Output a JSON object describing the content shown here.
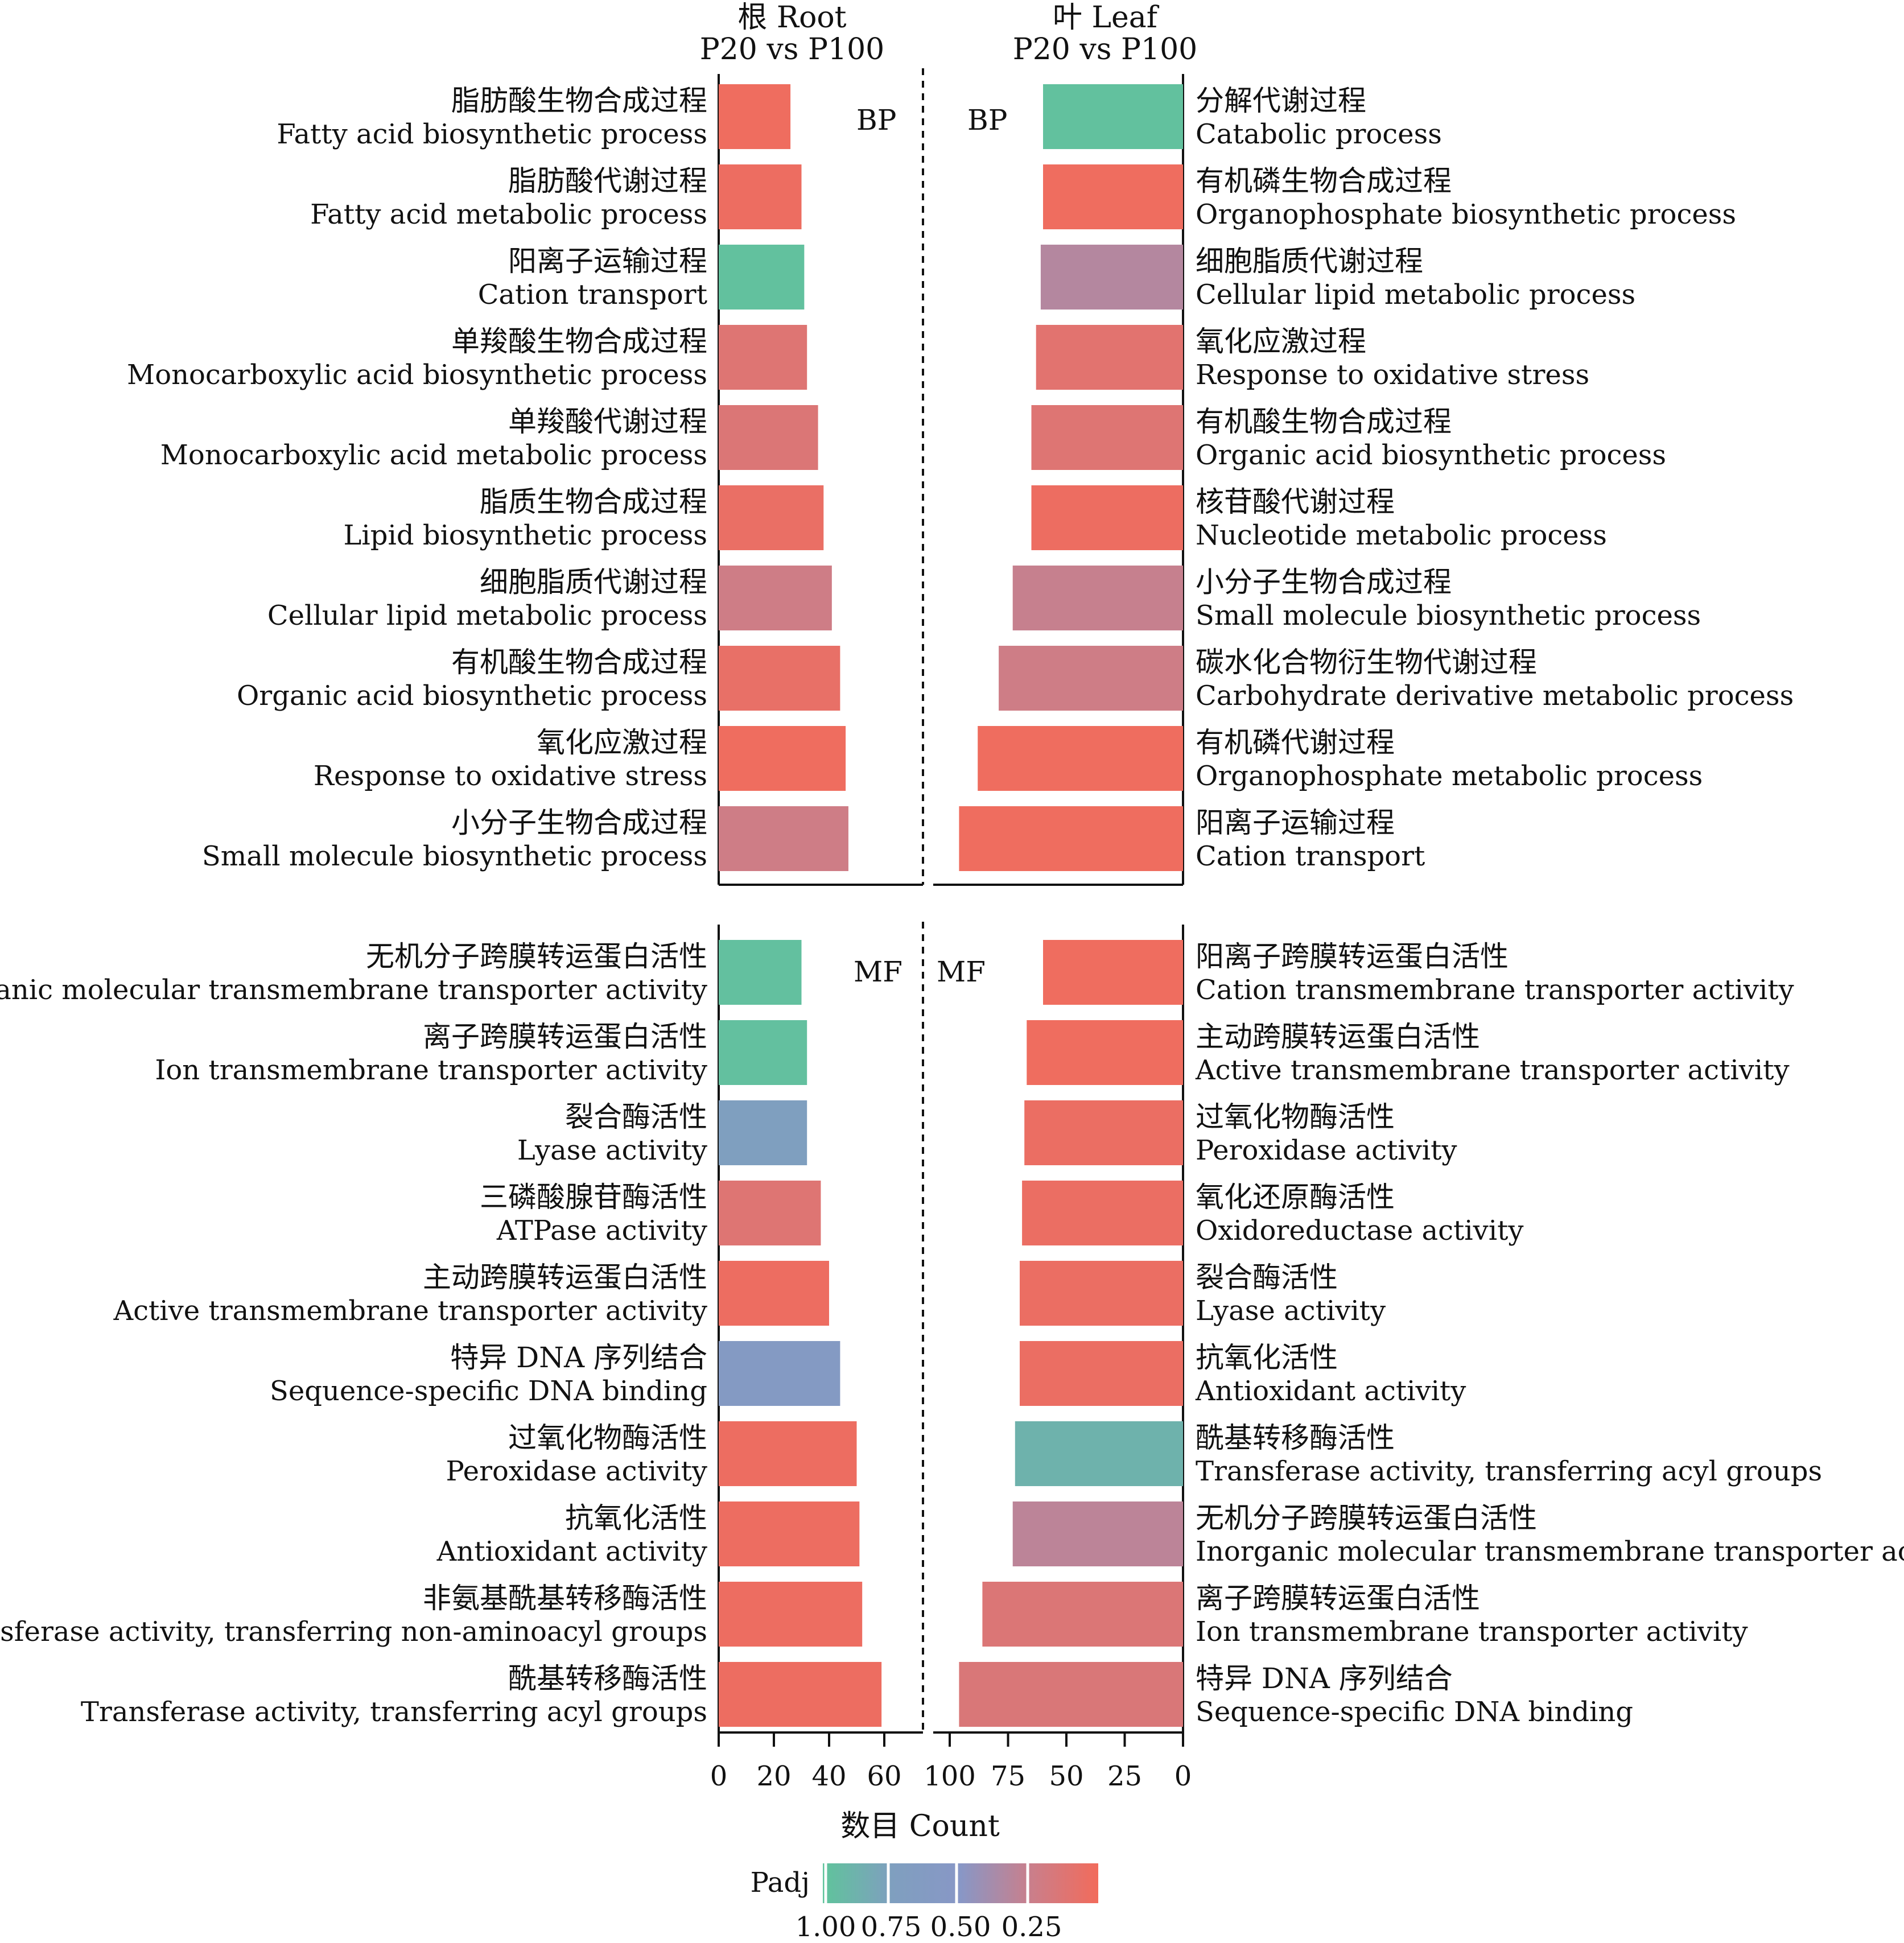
{
  "chart_data": {
    "type": "bar",
    "headers": {
      "root": [
        "根 Root",
        "P20 vs P100"
      ],
      "leaf": [
        "叶 Leaf",
        "P20 vs P100"
      ]
    },
    "xlabel": "数目 Count",
    "root_ticks": [
      "0",
      "20",
      "40",
      "60"
    ],
    "leaf_ticks": [
      "100",
      "75",
      "50",
      "25",
      "0"
    ],
    "root_xlim": [
      0,
      65
    ],
    "leaf_xlim": [
      0,
      102
    ],
    "legend": {
      "title": "Padj",
      "labels": [
        "1.00",
        "0.75",
        "0.50",
        "0.25"
      ]
    },
    "colors": {
      "padj_1_00": "#5fc49b",
      "padj_0_75": "#7f9fbf",
      "padj_0_50": "#8897c6",
      "padj_0_25": "#c97f8c",
      "padj_0_00": "#f26b5b"
    },
    "panels": [
      {
        "tag": "BP",
        "root": [
          {
            "cn": "脂肪酸生物合成过程",
            "en": "Fatty acid biosynthetic process",
            "count": 26,
            "padj": 0.02
          },
          {
            "cn": "脂肪酸代谢过程",
            "en": "Fatty acid metabolic process",
            "count": 30,
            "padj": 0.03
          },
          {
            "cn": "阳离子运输过程",
            "en": "Cation transport",
            "count": 31,
            "padj": 0.98
          },
          {
            "cn": "单羧酸生物合成过程",
            "en": "Monocarboxylic acid biosynthetic process",
            "count": 32,
            "padj": 0.12
          },
          {
            "cn": "单羧酸代谢过程",
            "en": "Monocarboxylic acid metabolic process",
            "count": 36,
            "padj": 0.14
          },
          {
            "cn": "脂质生物合成过程",
            "en": "Lipid biosynthetic process",
            "count": 38,
            "padj": 0.05
          },
          {
            "cn": "细胞脂质代谢过程",
            "en": "Cellular lipid metabolic process",
            "count": 41,
            "padj": 0.22
          },
          {
            "cn": "有机酸生物合成过程",
            "en": "Organic acid biosynthetic process",
            "count": 44,
            "padj": 0.06
          },
          {
            "cn": "氧化应激过程",
            "en": "Response to oxidative stress",
            "count": 46,
            "padj": 0.02
          },
          {
            "cn": "小分子生物合成过程",
            "en": "Small molecule biosynthetic process",
            "count": 47,
            "padj": 0.22
          }
        ],
        "leaf": [
          {
            "cn": "分解代谢过程",
            "en": "Catabolic process",
            "count": 60,
            "padj": 0.98
          },
          {
            "cn": "有机磷生物合成过程",
            "en": "Organophosphate biosynthetic process",
            "count": 60,
            "padj": 0.02
          },
          {
            "cn": "细胞脂质代谢过程",
            "en": "Cellular lipid metabolic process",
            "count": 61,
            "padj": 0.33
          },
          {
            "cn": "氧化应激过程",
            "en": "Response to oxidative stress",
            "count": 63,
            "padj": 0.1
          },
          {
            "cn": "有机酸生物合成过程",
            "en": "Organic acid biosynthetic process",
            "count": 65,
            "padj": 0.12
          },
          {
            "cn": "核苷酸代谢过程",
            "en": "Nucleotide metabolic process",
            "count": 65,
            "padj": 0.03
          },
          {
            "cn": "小分子生物合成过程",
            "en": "Small molecule biosynthetic process",
            "count": 73,
            "padj": 0.26
          },
          {
            "cn": "碳水化合物衍生物代谢过程",
            "en": "Carbohydrate derivative metabolic process",
            "count": 79,
            "padj": 0.22
          },
          {
            "cn": "有机磷代谢过程",
            "en": "Organophosphate metabolic process",
            "count": 88,
            "padj": 0.02
          },
          {
            "cn": "阳离子运输过程",
            "en": "Cation transport",
            "count": 96,
            "padj": 0.02
          }
        ]
      },
      {
        "tag": "MF",
        "root": [
          {
            "cn": "无机分子跨膜转运蛋白活性",
            "en": "Inorganic molecular transmembrane transporter activity",
            "count": 30,
            "padj": 0.97
          },
          {
            "cn": "离子跨膜转运蛋白活性",
            "en": "Ion transmembrane transporter activity",
            "count": 32,
            "padj": 0.97
          },
          {
            "cn": "裂合酶活性",
            "en": "Lyase activity",
            "count": 32,
            "padj": 0.74
          },
          {
            "cn": "三磷酸腺苷酶活性",
            "en": "ATPase activity",
            "count": 37,
            "padj": 0.12
          },
          {
            "cn": "主动跨膜转运蛋白活性",
            "en": "Active transmembrane transporter activity",
            "count": 40,
            "padj": 0.03
          },
          {
            "cn": "特异 DNA 序列结合",
            "en": "Sequence-specific DNA binding",
            "count": 44,
            "padj": 0.6
          },
          {
            "cn": "过氧化物酶活性",
            "en": "Peroxidase activity",
            "count": 50,
            "padj": 0.03
          },
          {
            "cn": "抗氧化活性",
            "en": "Antioxidant activity",
            "count": 51,
            "padj": 0.03
          },
          {
            "cn": "非氨基酰基转移酶活性",
            "en": "Transferase activity, transferring non-aminoacyl groups",
            "count": 52,
            "padj": 0.03
          },
          {
            "cn": "酰基转移酶活性",
            "en": "Transferase activity, transferring acyl groups",
            "count": 59,
            "padj": 0.03
          }
        ],
        "leaf": [
          {
            "cn": "阳离子跨膜转运蛋白活性",
            "en": "Cation transmembrane transporter activity",
            "count": 60,
            "padj": 0.02
          },
          {
            "cn": "主动跨膜转运蛋白活性",
            "en": "Active transmembrane transporter activity",
            "count": 67,
            "padj": 0.02
          },
          {
            "cn": "过氧化物酶活性",
            "en": "Peroxidase activity",
            "count": 68,
            "padj": 0.04
          },
          {
            "cn": "氧化还原酶活性",
            "en": "Oxidoreductase activity",
            "count": 69,
            "padj": 0.04
          },
          {
            "cn": "裂合酶活性",
            "en": "Lyase activity",
            "count": 70,
            "padj": 0.04
          },
          {
            "cn": "抗氧化活性",
            "en": "Antioxidant activity",
            "count": 70,
            "padj": 0.04
          },
          {
            "cn": "酰基转移酶活性",
            "en": "Transferase activity, transferring acyl groups",
            "count": 72,
            "padj": 0.88
          },
          {
            "cn": "无机分子跨膜转运蛋白活性",
            "en": "Inorganic molecular transmembrane transporter activity",
            "count": 73,
            "padj": 0.3
          },
          {
            "cn": "离子跨膜转运蛋白活性",
            "en": "Ion transmembrane transporter activity",
            "count": 86,
            "padj": 0.14
          },
          {
            "cn": "特异 DNA 序列结合",
            "en": "Sequence-specific DNA binding",
            "count": 96,
            "padj": 0.15
          }
        ]
      }
    ]
  }
}
